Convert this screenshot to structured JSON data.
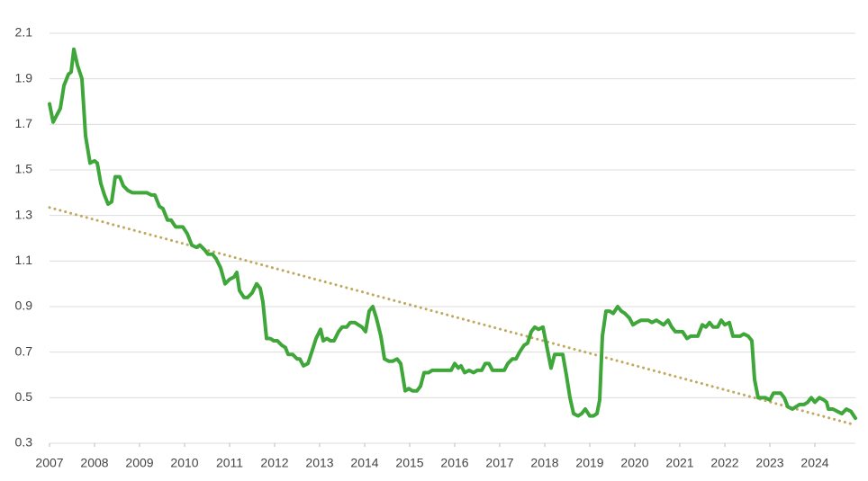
{
  "chart_data": {
    "type": "line",
    "xlim": [
      2007,
      2024.9
    ],
    "xticks": [
      2007,
      2008,
      2009,
      2010,
      2011,
      2012,
      2013,
      2014,
      2015,
      2016,
      2017,
      2018,
      2019,
      2020,
      2021,
      2022,
      2023,
      2024
    ],
    "ylim": [
      0.3,
      2.1
    ],
    "yticks": [
      0.3,
      0.5,
      0.7,
      0.9,
      1.1,
      1.3,
      1.5,
      1.7,
      1.9,
      2.1
    ],
    "grid": true,
    "series": [
      {
        "color": "#3fa63a",
        "style": "solid",
        "x": [
          2007.0,
          2007.08,
          2007.16,
          2007.24,
          2007.32,
          2007.42,
          2007.48,
          2007.54,
          2007.62,
          2007.72,
          2007.8,
          2007.9,
          2008.0,
          2008.06,
          2008.14,
          2008.22,
          2008.3,
          2008.38,
          2008.46,
          2008.56,
          2008.64,
          2008.74,
          2008.84,
          2008.94,
          2009.04,
          2009.16,
          2009.26,
          2009.34,
          2009.44,
          2009.52,
          2009.62,
          2009.7,
          2009.8,
          2009.9,
          2009.96,
          2010.06,
          2010.16,
          2010.26,
          2010.34,
          2010.44,
          2010.52,
          2010.62,
          2010.7,
          2010.8,
          2010.9,
          2011.0,
          2011.1,
          2011.16,
          2011.22,
          2011.32,
          2011.4,
          2011.5,
          2011.6,
          2011.68,
          2011.74,
          2011.82,
          2011.9,
          2011.98,
          2012.06,
          2012.16,
          2012.24,
          2012.3,
          2012.4,
          2012.5,
          2012.56,
          2012.64,
          2012.74,
          2012.84,
          2012.92,
          2013.02,
          2013.08,
          2013.16,
          2013.24,
          2013.32,
          2013.42,
          2013.5,
          2013.6,
          2013.68,
          2013.78,
          2013.86,
          2013.94,
          2014.02,
          2014.1,
          2014.18,
          2014.26,
          2014.36,
          2014.44,
          2014.54,
          2014.62,
          2014.72,
          2014.8,
          2014.9,
          2014.98,
          2015.06,
          2015.16,
          2015.24,
          2015.32,
          2015.42,
          2015.5,
          2015.58,
          2015.68,
          2015.76,
          2015.84,
          2015.92,
          2016.0,
          2016.08,
          2016.14,
          2016.22,
          2016.32,
          2016.42,
          2016.5,
          2016.6,
          2016.68,
          2016.76,
          2016.84,
          2016.94,
          2017.02,
          2017.1,
          2017.18,
          2017.28,
          2017.36,
          2017.44,
          2017.54,
          2017.62,
          2017.7,
          2017.78,
          2017.86,
          2017.96,
          2018.04,
          2018.14,
          2018.22,
          2018.3,
          2018.4,
          2018.48,
          2018.56,
          2018.64,
          2018.74,
          2018.82,
          2018.9,
          2019.0,
          2019.08,
          2019.16,
          2019.22,
          2019.28,
          2019.36,
          2019.44,
          2019.52,
          2019.62,
          2019.7,
          2019.78,
          2019.88,
          2019.96,
          2020.04,
          2020.14,
          2020.22,
          2020.3,
          2020.38,
          2020.48,
          2020.56,
          2020.64,
          2020.74,
          2020.82,
          2020.9,
          2020.98,
          2021.06,
          2021.16,
          2021.24,
          2021.32,
          2021.4,
          2021.5,
          2021.58,
          2021.66,
          2021.74,
          2021.84,
          2021.92,
          2022.0,
          2022.1,
          2022.18,
          2022.26,
          2022.34,
          2022.42,
          2022.52,
          2022.6,
          2022.66,
          2022.74,
          2022.82,
          2022.9,
          2023.0,
          2023.08,
          2023.16,
          2023.24,
          2023.32,
          2023.4,
          2023.5,
          2023.58,
          2023.66,
          2023.76,
          2023.84,
          2023.92,
          2024.0,
          2024.1,
          2024.2,
          2024.26,
          2024.3,
          2024.4,
          2024.5,
          2024.6,
          2024.7,
          2024.8,
          2024.9
        ],
        "values": [
          1.79,
          1.71,
          1.74,
          1.77,
          1.87,
          1.92,
          1.93,
          2.03,
          1.96,
          1.9,
          1.65,
          1.53,
          1.54,
          1.53,
          1.44,
          1.39,
          1.35,
          1.36,
          1.47,
          1.47,
          1.43,
          1.41,
          1.4,
          1.4,
          1.4,
          1.4,
          1.39,
          1.39,
          1.34,
          1.33,
          1.28,
          1.28,
          1.25,
          1.25,
          1.25,
          1.22,
          1.17,
          1.16,
          1.17,
          1.15,
          1.13,
          1.13,
          1.11,
          1.07,
          1.0,
          1.02,
          1.03,
          1.05,
          0.97,
          0.94,
          0.94,
          0.96,
          1.0,
          0.98,
          0.92,
          0.76,
          0.76,
          0.75,
          0.75,
          0.73,
          0.72,
          0.69,
          0.69,
          0.67,
          0.67,
          0.64,
          0.65,
          0.71,
          0.76,
          0.8,
          0.75,
          0.76,
          0.75,
          0.75,
          0.79,
          0.81,
          0.81,
          0.83,
          0.83,
          0.82,
          0.81,
          0.79,
          0.88,
          0.9,
          0.85,
          0.77,
          0.67,
          0.66,
          0.66,
          0.67,
          0.65,
          0.53,
          0.54,
          0.53,
          0.53,
          0.55,
          0.61,
          0.61,
          0.62,
          0.62,
          0.62,
          0.62,
          0.62,
          0.62,
          0.65,
          0.63,
          0.64,
          0.61,
          0.62,
          0.61,
          0.62,
          0.62,
          0.65,
          0.65,
          0.62,
          0.62,
          0.62,
          0.62,
          0.65,
          0.67,
          0.67,
          0.7,
          0.73,
          0.74,
          0.79,
          0.81,
          0.8,
          0.81,
          0.73,
          0.63,
          0.69,
          0.69,
          0.69,
          0.6,
          0.5,
          0.43,
          0.42,
          0.43,
          0.45,
          0.42,
          0.42,
          0.43,
          0.49,
          0.77,
          0.88,
          0.88,
          0.87,
          0.9,
          0.88,
          0.87,
          0.85,
          0.82,
          0.83,
          0.84,
          0.84,
          0.84,
          0.83,
          0.84,
          0.83,
          0.82,
          0.84,
          0.81,
          0.79,
          0.79,
          0.79,
          0.76,
          0.77,
          0.77,
          0.77,
          0.82,
          0.81,
          0.83,
          0.81,
          0.81,
          0.84,
          0.82,
          0.83,
          0.77,
          0.77,
          0.77,
          0.78,
          0.77,
          0.75,
          0.58,
          0.5,
          0.5,
          0.5,
          0.49,
          0.52,
          0.52,
          0.52,
          0.5,
          0.46,
          0.45,
          0.46,
          0.47,
          0.47,
          0.48,
          0.5,
          0.48,
          0.5,
          0.49,
          0.48,
          0.45,
          0.45,
          0.44,
          0.43,
          0.45,
          0.44,
          0.41
        ]
      },
      {
        "color": "#bfa95c",
        "style": "dotted",
        "x": [
          2007,
          2024.9
        ],
        "values": [
          1.335,
          0.38
        ]
      }
    ]
  }
}
